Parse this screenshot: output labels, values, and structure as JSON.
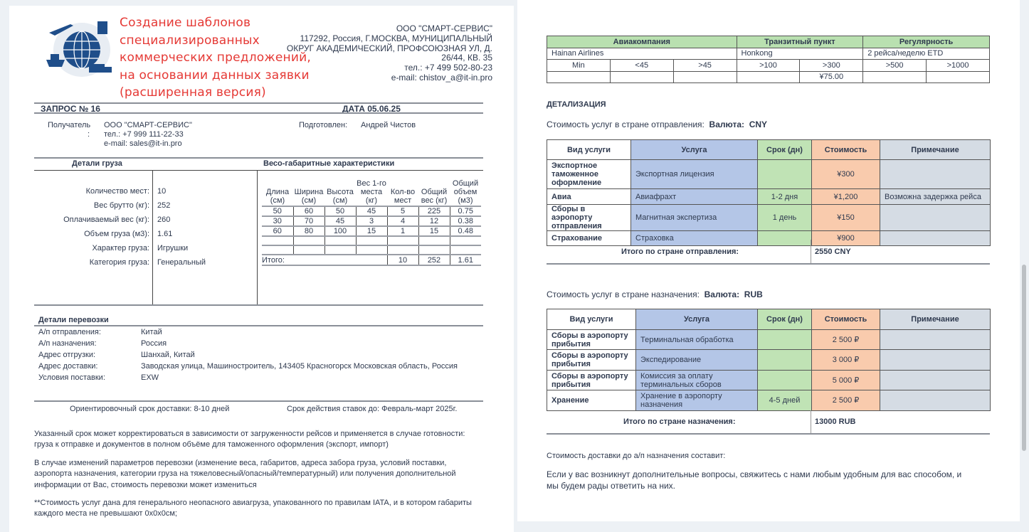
{
  "header": {
    "title_lines": [
      "Создание шаблонов",
      "специализированных",
      "коммерческих предложений,",
      "на основании данных заявки",
      "(расширенная версия)"
    ],
    "company_lines": [
      "ООО \"СМАРТ-СЕРВИС\"",
      "117292, Россия, Г.МОСКВА, МУНИЦИПАЛЬНЫЙ",
      "ОКРУГ АКАДЕМИЧЕСКИЙ, ПРОФСОЮЗНАЯ УЛ, Д.",
      "26/44, КВ. 35",
      "тел.: +7 499 502-80-23",
      "e-mail: chistov_a@it-in.pro"
    ],
    "logo": "logistics-globe-logo"
  },
  "request": {
    "number": "ЗАПРОС № 16",
    "date": "ДАТА 05.06.25"
  },
  "recipient": {
    "label": "Получатель",
    "colon": ":",
    "lines": [
      "ООО \"СМАРТ-СЕРВИС\"",
      "тел.: +7 999 111-22-33",
      "e-mail: sales@it-in.pro"
    ],
    "prepared_label": "Подготовлен:",
    "prepared_by": "Андрей Чистов"
  },
  "cargo": {
    "title": "Детали груза",
    "dims_title": "Весо-габаритные характеристики",
    "fields": [
      {
        "label": "Количество мест:",
        "value": "10"
      },
      {
        "label": "Вес брутто (кг):",
        "value": "252"
      },
      {
        "label": "Оплачиваемый вес (кг):",
        "value": "260"
      },
      {
        "label": "Объем груза (м3):",
        "value": "1.61"
      },
      {
        "label": "Характер груза:",
        "value": "Игрушки"
      },
      {
        "label": "Категория груза:",
        "value": "Генеральный"
      }
    ],
    "dims_headers": [
      "Длина (см)",
      "Ширина (см)",
      "Высота (см)",
      "Вес 1-го места (кг)",
      "Кол-во мест",
      "Общий вес (кг)",
      "Общий объем (м3)"
    ],
    "dims_rows": [
      [
        "50",
        "60",
        "50",
        "45",
        "5",
        "225",
        "0.75"
      ],
      [
        "30",
        "70",
        "45",
        "3",
        "4",
        "12",
        "0.38"
      ],
      [
        "60",
        "80",
        "100",
        "15",
        "1",
        "15",
        "0.48"
      ],
      [
        "",
        "",
        "",
        "",
        "",
        "",
        ""
      ],
      [
        "",
        "",
        "",
        "",
        "",
        "",
        ""
      ]
    ],
    "dims_total": {
      "label": "Итого:",
      "places": "10",
      "weight": "252",
      "volume": "1.61"
    }
  },
  "transport": {
    "title": "Детали перевозки",
    "fields": [
      {
        "label": "А/п отправления:",
        "value": "Китай"
      },
      {
        "label": "А/п назначения:",
        "value": "Россия"
      },
      {
        "label": "Адрес отгрузки:",
        "value": "Шанхай, Китай"
      },
      {
        "label": "Адрес доставки:",
        "value": "Заводская улица, Машиностроитель, 143405 Красногорск Московская область, Россия"
      },
      {
        "label": "Условия поставки:",
        "value": "EXW"
      }
    ],
    "delivery_time": "Ориентировочный срок доставки: 8-10 дней",
    "rates_valid": "Срок действия ставок до: Февраль-март 2025г."
  },
  "notes": [
    "Указанный срок может корректироваться в зависимости от загруженности рейсов и применяется в случае готовности: груза к отправке и документов в полном объёме для таможенного оформления (экспорт, импорт)",
    "В случае изменений параметров перевозки (изменение веса, габаритов, адреса забора груза, условий поставки, аэропорта назначения, категории груза на тяжеловесный/опасный/температурный) или получения дополнительной информации от Вас, стоимость перевозки может измениться",
    "**Стоимость услуг дана для генерального неопасного авиагруза, упакованного по правилам IATA, и в котором габариты каждого места не превышают 0х0х0см;"
  ],
  "airline": {
    "headers": [
      "Авиакомпания",
      "Транзитный пункт",
      "Регулярность"
    ],
    "values": [
      "Hainan Airlines",
      "Honkong",
      "2 рейса/неделю ETD"
    ],
    "brackets": [
      "Min",
      "<45",
      ">45",
      ">100",
      ">300",
      ">500",
      ">1000"
    ],
    "rates": [
      "",
      "",
      "",
      "",
      "¥75.00",
      "",
      ""
    ]
  },
  "detail": {
    "title": "ДЕТАЛИЗАЦИЯ",
    "origin": {
      "caption": "Стоимость услуг в стране отправления:",
      "currency_label": "Валюта:",
      "currency": "CNY",
      "headers": [
        "Вид услуги",
        "Услуга",
        "Срок (дн)",
        "Стоимость",
        "Примечание"
      ],
      "rows": [
        [
          "Экспортное таможенное оформление",
          "Экспортная лицензия",
          "",
          "¥300",
          ""
        ],
        [
          "Авиа",
          "Авиафрахт",
          "1-2 дня",
          "¥1,200",
          "Возможна задержка рейса"
        ],
        [
          "Сборы в аэропорту отправления",
          "Магнитная экспертиза",
          "1 день",
          "¥150",
          ""
        ],
        [
          "Страхование",
          "Страховка",
          "",
          "¥900",
          ""
        ]
      ],
      "total_label": "Итого по стране отправления:",
      "total": "2550 CNY"
    },
    "dest": {
      "caption": "Стоимость услуг в стране назначения:",
      "currency_label": "Валюта:",
      "currency": "RUB",
      "headers": [
        "Вид услуги",
        "Услуга",
        "Срок (дн)",
        "Стоимость",
        "Примечание"
      ],
      "rows": [
        [
          "Сборы в аэропорту прибытия",
          "Терминальная обработка",
          "",
          "2 500 ₽",
          ""
        ],
        [
          "Сборы в аэропорту прибытия",
          "Экспедирование",
          "",
          "3 000 ₽",
          ""
        ],
        [
          "Сборы в аэропорту прибытия",
          "Комиссия за оплату терминальных сборов",
          "",
          "5 000 ₽",
          ""
        ],
        [
          "Хранение",
          "Хранение в аэропорту назначения",
          "4-5 дней",
          "2 500 ₽",
          ""
        ]
      ],
      "total_label": "Итого по стране назначения:",
      "total": "13000 RUB"
    },
    "delivery_cost": "Стоимость доставки до а/п назначения составит:",
    "closing": "Если у вас возникнут дополнительные вопросы, свяжитесь с нами любым удобным для вас способом, и мы будем рады ответить на них."
  },
  "colors": {
    "title": "#e53935",
    "service": "#b4c6e7",
    "term": "#c0e3b5",
    "cost": "#f9cbad",
    "note": "#d5dce4",
    "airline_header": "#b9e0b0"
  }
}
